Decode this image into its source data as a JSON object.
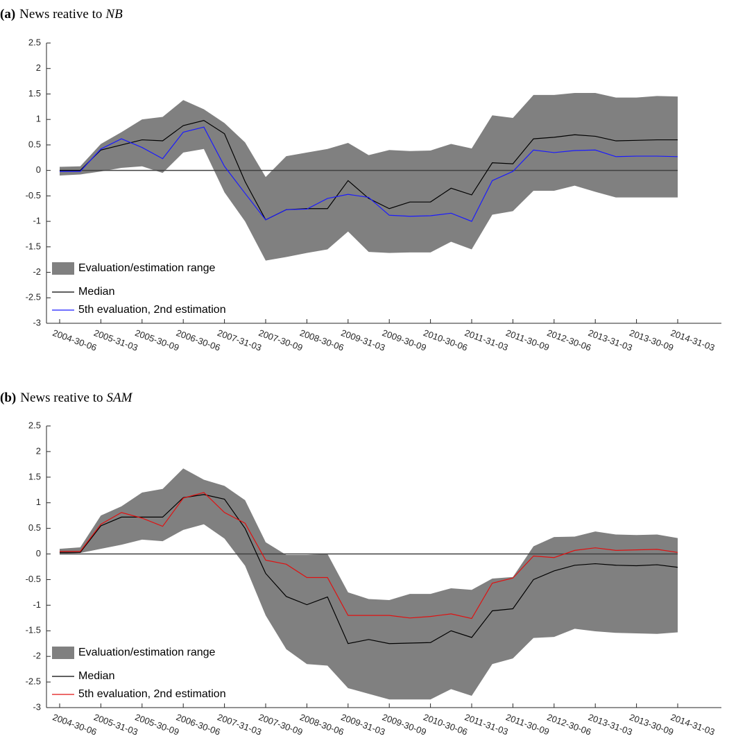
{
  "chart_data": [
    {
      "type": "line",
      "panel": "(a)",
      "title": "News reative to",
      "title_emphasis": "NB",
      "categories": [
        "2004-30-06",
        null,
        "2005-31-03",
        null,
        "2005-30-09",
        null,
        "2006-30-06",
        null,
        "2007-31-03",
        null,
        "2007-30-09",
        null,
        "2008-30-06",
        null,
        "2009-31-03",
        null,
        "2009-30-09",
        null,
        "2010-30-06",
        null,
        "2011-31-03",
        null,
        "2011-30-09",
        null,
        "2012-30-06",
        null,
        "2013-31-03",
        null,
        "2013-30-09",
        null,
        "2014-31-03"
      ],
      "ylim": [
        -3,
        2.5
      ],
      "yticks": [
        -3,
        -2.5,
        -2,
        -1.5,
        -1,
        -0.5,
        0,
        0.5,
        1,
        1.5,
        2,
        2.5
      ],
      "reference_line": 0,
      "legend": "lower left",
      "series": [
        {
          "name": "Evaluation/estimation range",
          "color": "#808080",
          "upper": [
            0.07,
            0.08,
            0.52,
            0.75,
            1.0,
            1.05,
            1.38,
            1.2,
            0.93,
            0.55,
            -0.13,
            0.28,
            0.35,
            0.42,
            0.54,
            0.3,
            0.4,
            0.38,
            0.39,
            0.52,
            0.43,
            1.08,
            1.03,
            1.48,
            1.48,
            1.52,
            1.52,
            1.43,
            1.43,
            1.46,
            1.45
          ],
          "lower": [
            -0.1,
            -0.08,
            -0.02,
            0.05,
            0.08,
            -0.05,
            0.35,
            0.42,
            -0.43,
            -1.0,
            -1.77,
            -1.7,
            -1.62,
            -1.55,
            -1.2,
            -1.6,
            -1.62,
            -1.61,
            -1.61,
            -1.4,
            -1.55,
            -0.87,
            -0.8,
            -0.4,
            -0.4,
            -0.3,
            -0.42,
            -0.53,
            -0.53,
            -0.53,
            -0.53
          ]
        },
        {
          "name": "Median",
          "color": "#000000",
          "values": [
            0,
            0,
            0.4,
            0.5,
            0.6,
            0.58,
            0.88,
            0.98,
            0.72,
            -0.22,
            -0.97,
            -0.77,
            -0.75,
            -0.75,
            -0.2,
            -0.55,
            -0.75,
            -0.62,
            -0.62,
            -0.35,
            -0.48,
            0.15,
            0.13,
            0.62,
            0.65,
            0.7,
            0.67,
            0.58,
            0.59,
            0.6,
            0.6
          ]
        },
        {
          "name": "5th evaluation, 2nd estimation",
          "color": "#1a1aff",
          "values": [
            -0.02,
            -0.02,
            0.42,
            0.62,
            0.45,
            0.23,
            0.75,
            0.85,
            0.08,
            -0.45,
            -0.97,
            -0.77,
            -0.76,
            -0.55,
            -0.47,
            -0.53,
            -0.88,
            -0.9,
            -0.89,
            -0.84,
            -1.0,
            -0.2,
            -0.02,
            0.4,
            0.35,
            0.39,
            0.4,
            0.27,
            0.28,
            0.28,
            0.27
          ]
        }
      ]
    },
    {
      "type": "line",
      "panel": "(b)",
      "title": "News reative to",
      "title_emphasis": "SAM",
      "categories": [
        "2004-30-06",
        null,
        "2005-31-03",
        null,
        "2005-30-09",
        null,
        "2006-30-06",
        null,
        "2007-31-03",
        null,
        "2007-30-09",
        null,
        "2008-30-06",
        null,
        "2009-31-03",
        null,
        "2009-30-09",
        null,
        "2010-30-06",
        null,
        "2011-31-03",
        null,
        "2011-30-09",
        null,
        "2012-30-06",
        null,
        "2013-31-03",
        null,
        "2013-30-09",
        null,
        "2014-31-03"
      ],
      "ylim": [
        -3,
        2.5
      ],
      "yticks": [
        -3,
        -2.5,
        -2,
        -1.5,
        -1,
        -0.5,
        0,
        0.5,
        1,
        1.5,
        2,
        2.5
      ],
      "reference_line": 0,
      "legend": "lower left",
      "series": [
        {
          "name": "Evaluation/estimation range",
          "color": "#808080",
          "upper": [
            0.1,
            0.13,
            0.75,
            0.93,
            1.2,
            1.27,
            1.67,
            1.45,
            1.33,
            1.05,
            0.23,
            -0.02,
            -0.02,
            0.0,
            -0.75,
            -0.88,
            -0.9,
            -0.78,
            -0.78,
            -0.67,
            -0.7,
            -0.48,
            -0.45,
            0.15,
            0.33,
            0.34,
            0.44,
            0.38,
            0.37,
            0.38,
            0.31
          ],
          "lower": [
            0.0,
            0.02,
            0.1,
            0.18,
            0.28,
            0.25,
            0.47,
            0.58,
            0.3,
            -0.23,
            -1.2,
            -1.86,
            -2.15,
            -2.18,
            -2.62,
            -2.73,
            -2.84,
            -2.84,
            -2.84,
            -2.64,
            -2.77,
            -2.15,
            -2.04,
            -1.64,
            -1.62,
            -1.46,
            -1.51,
            -1.54,
            -1.55,
            -1.56,
            -1.53
          ]
        },
        {
          "name": "Median",
          "color": "#000000",
          "values": [
            0.03,
            0.03,
            0.55,
            0.72,
            0.72,
            0.72,
            1.1,
            1.16,
            1.07,
            0.5,
            -0.38,
            -0.83,
            -0.99,
            -0.84,
            -1.75,
            -1.67,
            -1.75,
            -1.74,
            -1.73,
            -1.5,
            -1.63,
            -1.11,
            -1.07,
            -0.5,
            -0.33,
            -0.22,
            -0.19,
            -0.22,
            -0.23,
            -0.21,
            -0.26
          ]
        },
        {
          "name": "5th evaluation, 2nd estimation",
          "color": "#e01010",
          "values": [
            0.05,
            0.05,
            0.58,
            0.81,
            0.7,
            0.54,
            1.09,
            1.2,
            0.81,
            0.6,
            -0.12,
            -0.2,
            -0.46,
            -0.46,
            -1.2,
            -1.2,
            -1.2,
            -1.25,
            -1.22,
            -1.17,
            -1.26,
            -0.57,
            -0.47,
            -0.04,
            -0.07,
            0.07,
            0.12,
            0.07,
            0.08,
            0.09,
            0.03
          ]
        }
      ]
    }
  ]
}
